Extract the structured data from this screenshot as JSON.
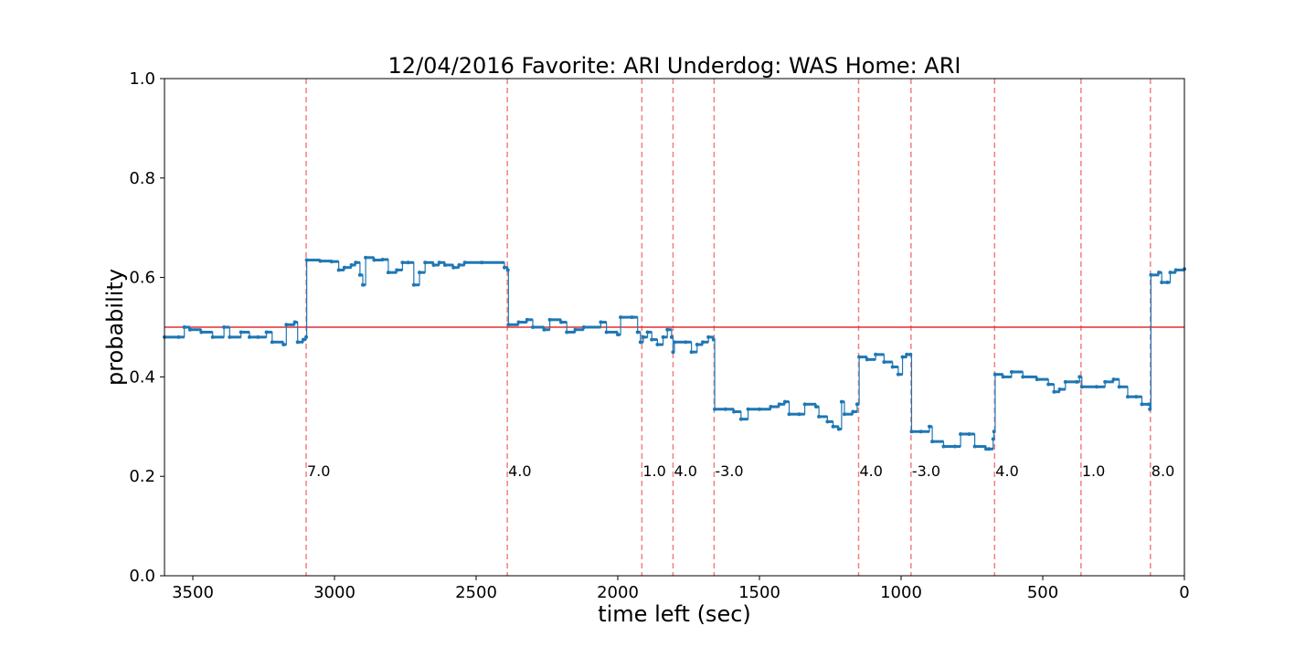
{
  "chart_data": {
    "type": "line",
    "title": "12/04/2016 Favorite: ARI Underdog: WAS Home: ARI",
    "xlabel": "time left (sec)",
    "ylabel": "probability",
    "xlim": [
      3600,
      0
    ],
    "ylim": [
      0.0,
      1.0
    ],
    "x_reversed": true,
    "grid": false,
    "xticks": [
      3500,
      3000,
      2500,
      2000,
      1500,
      1000,
      500,
      0
    ],
    "xtick_labels": [
      "3500",
      "3000",
      "2500",
      "2000",
      "1500",
      "1000",
      "500",
      "0"
    ],
    "yticks": [
      0.0,
      0.2,
      0.4,
      0.6,
      0.8,
      1.0
    ],
    "ytick_labels": [
      "0.0",
      "0.2",
      "0.4",
      "0.6",
      "0.8",
      "1.0"
    ],
    "threshold": {
      "y": 0.5,
      "color": "#e03030"
    },
    "series_color": "#1f77b4",
    "score_events": [
      {
        "x": 3100,
        "label": "7.0"
      },
      {
        "x": 2390,
        "label": "4.0"
      },
      {
        "x": 1915,
        "label": "1.0"
      },
      {
        "x": 1805,
        "label": "4.0"
      },
      {
        "x": 1660,
        "label": "-3.0"
      },
      {
        "x": 1150,
        "label": "4.0"
      },
      {
        "x": 965,
        "label": "-3.0"
      },
      {
        "x": 670,
        "label": "4.0"
      },
      {
        "x": 365,
        "label": "1.0"
      },
      {
        "x": 120,
        "label": "8.0"
      }
    ],
    "annotation_y": 0.2,
    "event_line_color": "#f08080",
    "series": [
      {
        "points": [
          [
            3600,
            0.48
          ],
          [
            3550,
            0.48
          ],
          [
            3530,
            0.5
          ],
          [
            3510,
            0.495
          ],
          [
            3470,
            0.49
          ],
          [
            3430,
            0.48
          ],
          [
            3390,
            0.5
          ],
          [
            3370,
            0.48
          ],
          [
            3330,
            0.49
          ],
          [
            3300,
            0.48
          ],
          [
            3270,
            0.48
          ],
          [
            3240,
            0.49
          ],
          [
            3220,
            0.47
          ],
          [
            3180,
            0.465
          ],
          [
            3170,
            0.505
          ],
          [
            3140,
            0.51
          ],
          [
            3130,
            0.47
          ],
          [
            3110,
            0.475
          ],
          [
            3100,
            0.48
          ],
          [
            3098,
            0.635
          ],
          [
            3050,
            0.633
          ],
          [
            3010,
            0.632
          ],
          [
            2985,
            0.615
          ],
          [
            2965,
            0.62
          ],
          [
            2940,
            0.625
          ],
          [
            2925,
            0.63
          ],
          [
            2910,
            0.605
          ],
          [
            2900,
            0.585
          ],
          [
            2890,
            0.64
          ],
          [
            2860,
            0.635
          ],
          [
            2830,
            0.636
          ],
          [
            2810,
            0.61
          ],
          [
            2780,
            0.615
          ],
          [
            2760,
            0.63
          ],
          [
            2740,
            0.63
          ],
          [
            2720,
            0.585
          ],
          [
            2700,
            0.61
          ],
          [
            2680,
            0.63
          ],
          [
            2650,
            0.625
          ],
          [
            2630,
            0.63
          ],
          [
            2610,
            0.625
          ],
          [
            2580,
            0.62
          ],
          [
            2560,
            0.625
          ],
          [
            2540,
            0.63
          ],
          [
            2480,
            0.63
          ],
          [
            2400,
            0.62
          ],
          [
            2388,
            0.615
          ],
          [
            2386,
            0.505
          ],
          [
            2350,
            0.51
          ],
          [
            2320,
            0.515
          ],
          [
            2300,
            0.5
          ],
          [
            2260,
            0.495
          ],
          [
            2240,
            0.515
          ],
          [
            2200,
            0.51
          ],
          [
            2180,
            0.49
          ],
          [
            2150,
            0.495
          ],
          [
            2120,
            0.5
          ],
          [
            2060,
            0.51
          ],
          [
            2040,
            0.49
          ],
          [
            2000,
            0.485
          ],
          [
            1990,
            0.52
          ],
          [
            1950,
            0.52
          ],
          [
            1930,
            0.49
          ],
          [
            1920,
            0.47
          ],
          [
            1910,
            0.48
          ],
          [
            1895,
            0.49
          ],
          [
            1880,
            0.475
          ],
          [
            1860,
            0.465
          ],
          [
            1840,
            0.48
          ],
          [
            1825,
            0.495
          ],
          [
            1810,
            0.48
          ],
          [
            1805,
            0.45
          ],
          [
            1800,
            0.47
          ],
          [
            1760,
            0.47
          ],
          [
            1740,
            0.45
          ],
          [
            1720,
            0.465
          ],
          [
            1700,
            0.47
          ],
          [
            1680,
            0.48
          ],
          [
            1662,
            0.475
          ],
          [
            1658,
            0.335
          ],
          [
            1620,
            0.335
          ],
          [
            1590,
            0.33
          ],
          [
            1565,
            0.315
          ],
          [
            1540,
            0.335
          ],
          [
            1500,
            0.335
          ],
          [
            1460,
            0.34
          ],
          [
            1430,
            0.345
          ],
          [
            1410,
            0.35
          ],
          [
            1395,
            0.325
          ],
          [
            1360,
            0.325
          ],
          [
            1340,
            0.345
          ],
          [
            1300,
            0.34
          ],
          [
            1290,
            0.32
          ],
          [
            1260,
            0.31
          ],
          [
            1240,
            0.3
          ],
          [
            1220,
            0.295
          ],
          [
            1210,
            0.35
          ],
          [
            1200,
            0.325
          ],
          [
            1170,
            0.33
          ],
          [
            1155,
            0.345
          ],
          [
            1148,
            0.44
          ],
          [
            1120,
            0.435
          ],
          [
            1090,
            0.445
          ],
          [
            1060,
            0.43
          ],
          [
            1030,
            0.42
          ],
          [
            1010,
            0.405
          ],
          [
            995,
            0.44
          ],
          [
            980,
            0.445
          ],
          [
            967,
            0.445
          ],
          [
            963,
            0.29
          ],
          [
            930,
            0.29
          ],
          [
            900,
            0.3
          ],
          [
            890,
            0.27
          ],
          [
            850,
            0.26
          ],
          [
            810,
            0.26
          ],
          [
            790,
            0.285
          ],
          [
            760,
            0.285
          ],
          [
            740,
            0.26
          ],
          [
            700,
            0.255
          ],
          [
            690,
            0.255
          ],
          [
            675,
            0.275
          ],
          [
            672,
            0.29
          ],
          [
            668,
            0.405
          ],
          [
            640,
            0.4
          ],
          [
            610,
            0.41
          ],
          [
            570,
            0.4
          ],
          [
            520,
            0.395
          ],
          [
            480,
            0.385
          ],
          [
            460,
            0.37
          ],
          [
            440,
            0.375
          ],
          [
            420,
            0.39
          ],
          [
            380,
            0.39
          ],
          [
            370,
            0.4
          ],
          [
            362,
            0.38
          ],
          [
            310,
            0.38
          ],
          [
            280,
            0.39
          ],
          [
            250,
            0.395
          ],
          [
            230,
            0.38
          ],
          [
            200,
            0.36
          ],
          [
            170,
            0.36
          ],
          [
            150,
            0.345
          ],
          [
            125,
            0.345
          ],
          [
            122,
            0.335
          ],
          [
            118,
            0.605
          ],
          [
            90,
            0.61
          ],
          [
            80,
            0.59
          ],
          [
            60,
            0.59
          ],
          [
            50,
            0.61
          ],
          [
            30,
            0.615
          ],
          [
            0,
            0.617
          ]
        ]
      }
    ]
  }
}
